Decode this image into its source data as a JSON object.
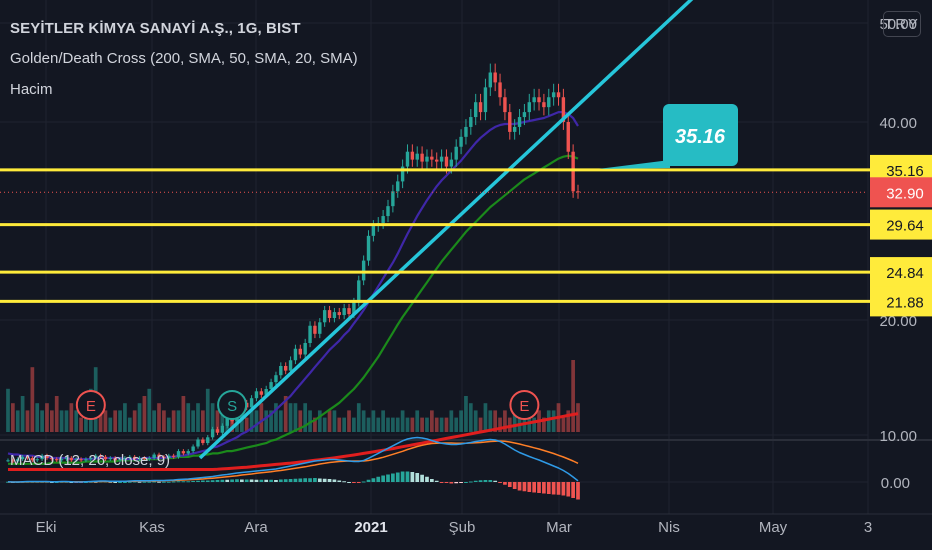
{
  "header": {
    "symbol_title": "SEYİTLER KİMYA SANAYİ A.Ş., 1G, BIST",
    "indicator_cross": "Golden/Death Cross (200, SMA, 50, SMA, 20, SMA)",
    "indicator_volume": "Hacim",
    "indicator_macd": "MACD (12, 26, close, 9)",
    "currency": "TRY"
  },
  "colors": {
    "background": "#131722",
    "up": "#26a69a",
    "down": "#ef5350",
    "horizontal_levels": "#ffeb3b",
    "trendline": "#26c6da",
    "sma20": "#3f27a8",
    "sma50": "#1b8a1b",
    "sma200": "#e01e1e",
    "macd_line": "#2f9ae6",
    "signal_line": "#ff7f27",
    "callout": "#26bcc4"
  },
  "chart_data": {
    "type": "candlestick",
    "x_ticks": [
      "Eki",
      "Kas",
      "Ara",
      "2021",
      "Şub",
      "Mar",
      "Nis",
      "May",
      "3"
    ],
    "price_axis_ticks": [
      "50.00",
      "40.00",
      "20.00",
      "10.00"
    ],
    "macd_axis_ticks": [
      "0.00"
    ],
    "levels": [
      35.16,
      29.64,
      24.84,
      21.88
    ],
    "level_labels": [
      "35.16",
      "29.64",
      "24.84",
      "21.88"
    ],
    "last_price": 32.9,
    "last_price_label": "32.90",
    "callout_label": "35.16",
    "trendline": {
      "from": [
        "Ara",
        8.0
      ],
      "to": [
        "Mar",
        56.5
      ]
    },
    "close": [
      7.8,
      7.7,
      7.9,
      8.1,
      8.0,
      7.8,
      7.9,
      8.2,
      8.0,
      7.9,
      7.8,
      7.9,
      8.0,
      7.8,
      7.9,
      7.8,
      7.9,
      8.0,
      8.2,
      8.1,
      7.9,
      8.0,
      7.8,
      7.9,
      8.0,
      8.1,
      7.9,
      8.0,
      7.9,
      8.0,
      8.3,
      8.1,
      8.0,
      8.2,
      8.1,
      8.6,
      8.4,
      8.6,
      9.0,
      9.6,
      9.3,
      9.8,
      10.5,
      10.2,
      10.8,
      11.5,
      11.2,
      12.0,
      12.8,
      12.4,
      13.2,
      13.8,
      13.5,
      14.0,
      14.6,
      15.2,
      16.0,
      15.6,
      16.5,
      17.5,
      17.0,
      18.0,
      19.5,
      18.8,
      19.8,
      21.0,
      20.2,
      20.8,
      20.5,
      21.2,
      20.6,
      21.8,
      24.0,
      26.0,
      28.5,
      29.5,
      29.8,
      30.5,
      31.5,
      33.0,
      34.0,
      35.5,
      37.0,
      36.2,
      36.8,
      36.0,
      36.5,
      36.2,
      36.0,
      36.5,
      35.5,
      36.2,
      37.5,
      38.5,
      39.5,
      40.5,
      42.0,
      41.0,
      43.5,
      45.0,
      44.0,
      42.5,
      41.0,
      39.0,
      39.5,
      40.5,
      41.0,
      42.0,
      42.5,
      42.0,
      41.5,
      42.5,
      43.0,
      42.5,
      40.0,
      37.0,
      33.0,
      32.9
    ],
    "sma20": [
      8.4,
      8.3,
      8.3,
      8.2,
      8.2,
      8.2,
      8.1,
      8.1,
      8.1,
      8.0,
      8.0,
      8.0,
      8.0,
      7.9,
      7.9,
      7.9,
      7.9,
      7.9,
      8.0,
      8.0,
      8.0,
      8.0,
      8.0,
      8.0,
      7.9,
      7.9,
      7.9,
      7.9,
      8.0,
      8.0,
      8.0,
      8.0,
      8.0,
      8.1,
      8.1,
      8.2,
      8.2,
      8.3,
      8.4,
      8.5,
      8.6,
      8.7,
      8.9,
      9.0,
      9.2,
      9.4,
      9.6,
      9.8,
      10.1,
      10.3,
      10.6,
      10.9,
      11.2,
      11.5,
      11.8,
      12.2,
      12.6,
      13.0,
      13.4,
      13.9,
      14.4,
      14.9,
      15.4,
      15.9,
      16.4,
      16.9,
      17.4,
      17.8,
      18.2,
      18.7,
      19.1,
      19.7,
      20.3,
      21.0,
      21.8,
      22.6,
      23.4,
      24.2,
      25.0,
      25.8,
      26.7,
      27.7,
      28.7,
      29.6,
      30.5,
      31.3,
      32.1,
      32.8,
      33.5,
      34.1,
      34.6,
      35.1,
      35.6,
      36.1,
      36.7,
      37.3,
      37.9,
      38.4,
      38.8,
      39.2,
      39.5,
      39.7,
      39.8,
      39.8,
      39.8,
      39.9,
      40.0,
      40.1,
      40.2,
      40.3,
      40.4,
      40.6,
      40.8,
      41.0,
      41.0,
      40.8,
      40.4,
      39.6
    ],
    "sma50": [
      7.5,
      7.5,
      7.5,
      7.5,
      7.5,
      7.5,
      7.5,
      7.5,
      7.5,
      7.6,
      7.6,
      7.6,
      7.6,
      7.6,
      7.6,
      7.6,
      7.7,
      7.7,
      7.7,
      7.7,
      7.7,
      7.7,
      7.7,
      7.8,
      7.8,
      7.8,
      7.8,
      7.8,
      7.9,
      7.9,
      7.9,
      7.9,
      8.0,
      8.0,
      8.0,
      8.1,
      8.1,
      8.1,
      8.2,
      8.2,
      8.3,
      8.3,
      8.4,
      8.4,
      8.5,
      8.6,
      8.6,
      8.7,
      8.8,
      8.9,
      9.0,
      9.1,
      9.2,
      9.3,
      9.5,
      9.6,
      9.8,
      10.0,
      10.2,
      10.4,
      10.6,
      10.8,
      11.1,
      11.3,
      11.6,
      11.9,
      12.2,
      12.5,
      12.8,
      13.2,
      13.6,
      14.0,
      14.5,
      15.0,
      15.6,
      16.2,
      16.8,
      17.5,
      18.2,
      18.9,
      19.6,
      20.3,
      21.0,
      21.7,
      22.4,
      23.1,
      23.8,
      24.5,
      25.2,
      25.9,
      26.5,
      27.1,
      27.7,
      28.3,
      28.9,
      29.4,
      29.9,
      30.4,
      30.9,
      31.4,
      31.8,
      32.2,
      32.6,
      33.0,
      33.4,
      33.8,
      34.2,
      34.5,
      34.8,
      35.1,
      35.4,
      35.7,
      36.0,
      36.3,
      36.5,
      36.6,
      36.5,
      36.3
    ],
    "sma200": [
      7.0,
      7.0,
      7.0,
      7.0,
      7.0,
      7.0,
      7.0,
      7.0,
      7.0,
      7.0,
      7.0,
      7.0,
      7.0,
      7.0,
      7.0,
      7.0,
      7.0,
      7.0,
      7.0,
      7.0,
      7.0,
      7.0,
      7.0,
      7.0,
      7.0,
      7.0,
      7.0,
      7.0,
      7.0,
      7.0,
      7.0,
      7.0,
      7.0,
      7.0,
      7.0,
      7.0,
      7.0,
      7.0,
      7.0,
      7.0,
      7.0,
      7.0,
      7.0,
      7.02,
      7.05,
      7.08,
      7.11,
      7.14,
      7.17,
      7.2,
      7.24,
      7.28,
      7.32,
      7.36,
      7.4,
      7.44,
      7.48,
      7.52,
      7.56,
      7.6,
      7.65,
      7.7,
      7.75,
      7.8,
      7.85,
      7.9,
      7.96,
      8.02,
      8.08,
      8.14,
      8.2,
      8.26,
      8.33,
      8.4,
      8.47,
      8.54,
      8.61,
      8.68,
      8.75,
      8.82,
      8.9,
      8.98,
      9.06,
      9.14,
      9.22,
      9.3,
      9.38,
      9.46,
      9.54,
      9.62,
      9.7,
      9.78,
      9.86,
      9.94,
      10.02,
      10.1,
      10.18,
      10.26,
      10.34,
      10.42,
      10.5,
      10.58,
      10.66,
      10.74,
      10.82,
      10.9,
      10.98,
      11.06,
      11.14,
      11.22,
      11.3,
      11.38,
      11.46,
      11.54,
      11.62,
      11.7,
      11.78,
      11.86
    ],
    "volume": [
      0.6,
      0.4,
      0.3,
      0.5,
      0.3,
      0.9,
      0.4,
      0.3,
      0.4,
      0.3,
      0.5,
      0.3,
      0.3,
      0.4,
      0.3,
      0.2,
      0.5,
      0.6,
      0.9,
      0.4,
      0.3,
      0.2,
      0.3,
      0.3,
      0.4,
      0.2,
      0.3,
      0.4,
      0.5,
      0.6,
      0.3,
      0.4,
      0.3,
      0.2,
      0.3,
      0.3,
      0.5,
      0.4,
      0.3,
      0.4,
      0.3,
      0.6,
      0.4,
      0.3,
      0.3,
      0.4,
      0.3,
      0.5,
      0.3,
      0.2,
      0.3,
      0.3,
      0.4,
      0.3,
      0.3,
      0.4,
      0.3,
      0.5,
      0.4,
      0.4,
      0.3,
      0.4,
      0.3,
      0.2,
      0.3,
      0.2,
      0.3,
      0.3,
      0.2,
      0.2,
      0.3,
      0.2,
      0.4,
      0.3,
      0.2,
      0.3,
      0.2,
      0.3,
      0.2,
      0.2,
      0.2,
      0.3,
      0.2,
      0.2,
      0.3,
      0.2,
      0.2,
      0.3,
      0.2,
      0.2,
      0.2,
      0.3,
      0.2,
      0.3,
      0.5,
      0.4,
      0.3,
      0.2,
      0.4,
      0.3,
      0.3,
      0.2,
      0.3,
      0.2,
      0.3,
      0.2,
      0.4,
      0.3,
      0.2,
      0.3,
      0.2,
      0.3,
      0.3,
      0.4,
      0.2,
      0.3,
      1.0,
      0.4
    ],
    "macd": [
      0.01,
      0.0,
      0.0,
      0.01,
      0.02,
      0.02,
      0.02,
      0.02,
      0.02,
      0.01,
      0.01,
      0.02,
      0.02,
      0.01,
      0.0,
      0.0,
      0.01,
      0.02,
      0.03,
      0.04,
      0.04,
      0.03,
      0.03,
      0.03,
      0.03,
      0.04,
      0.05,
      0.05,
      0.05,
      0.05,
      0.06,
      0.06,
      0.06,
      0.07,
      0.08,
      0.1,
      0.11,
      0.12,
      0.14,
      0.16,
      0.18,
      0.2,
      0.22,
      0.25,
      0.28,
      0.3,
      0.33,
      0.36,
      0.38,
      0.4,
      0.42,
      0.44,
      0.46,
      0.48,
      0.5,
      0.52,
      0.56,
      0.6,
      0.64,
      0.68,
      0.72,
      0.76,
      0.8,
      0.84,
      0.86,
      0.88,
      0.9,
      0.9,
      0.88,
      0.86,
      0.84,
      0.82,
      0.82,
      0.86,
      0.95,
      1.05,
      1.15,
      1.25,
      1.35,
      1.45,
      1.55,
      1.65,
      1.72,
      1.76,
      1.78,
      1.76,
      1.72,
      1.66,
      1.6,
      1.55,
      1.52,
      1.5,
      1.5,
      1.52,
      1.55,
      1.58,
      1.62,
      1.65,
      1.68,
      1.7,
      1.68,
      1.62,
      1.52,
      1.4,
      1.28,
      1.18,
      1.1,
      1.02,
      0.95,
      0.88,
      0.8,
      0.72,
      0.64,
      0.56,
      0.46,
      0.34,
      0.2,
      0.05
    ],
    "signal": [
      0.0,
      0.0,
      0.0,
      0.0,
      0.01,
      0.01,
      0.01,
      0.01,
      0.01,
      0.01,
      0.01,
      0.01,
      0.01,
      0.01,
      0.01,
      0.01,
      0.01,
      0.01,
      0.02,
      0.02,
      0.02,
      0.02,
      0.03,
      0.03,
      0.03,
      0.03,
      0.03,
      0.04,
      0.04,
      0.04,
      0.04,
      0.05,
      0.05,
      0.06,
      0.06,
      0.07,
      0.08,
      0.09,
      0.1,
      0.11,
      0.12,
      0.14,
      0.15,
      0.17,
      0.19,
      0.21,
      0.23,
      0.25,
      0.28,
      0.3,
      0.32,
      0.35,
      0.37,
      0.39,
      0.41,
      0.44,
      0.46,
      0.49,
      0.52,
      0.55,
      0.58,
      0.61,
      0.65,
      0.68,
      0.72,
      0.75,
      0.78,
      0.8,
      0.82,
      0.83,
      0.84,
      0.84,
      0.84,
      0.84,
      0.86,
      0.9,
      0.94,
      0.99,
      1.05,
      1.11,
      1.17,
      1.23,
      1.3,
      1.36,
      1.42,
      1.47,
      1.51,
      1.54,
      1.55,
      1.56,
      1.56,
      1.56,
      1.55,
      1.55,
      1.55,
      1.56,
      1.57,
      1.58,
      1.6,
      1.62,
      1.63,
      1.64,
      1.63,
      1.6,
      1.56,
      1.52,
      1.47,
      1.42,
      1.37,
      1.32,
      1.26,
      1.2,
      1.14,
      1.07,
      1.0,
      0.92,
      0.84,
      0.75
    ],
    "signals": [
      {
        "label": "E",
        "index": 17
      },
      {
        "label": "S",
        "index": 46
      },
      {
        "label": "E",
        "index": 106
      }
    ]
  }
}
